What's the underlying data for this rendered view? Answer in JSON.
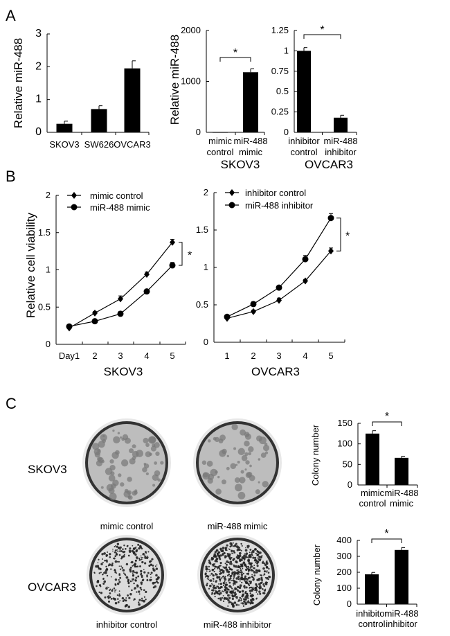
{
  "panel_labels": [
    "A",
    "B",
    "C"
  ],
  "colors": {
    "bar": "#000000",
    "line": "#000000",
    "dish_background": "#d9d9d9",
    "colony": "#222222"
  },
  "chart_data": [
    {
      "id": "A1",
      "type": "bar",
      "ylabel": "Relative miR-488",
      "ylim": [
        0,
        3
      ],
      "yticks": [
        "0",
        "1",
        "2",
        "3"
      ],
      "categories": [
        [
          "SKOV3"
        ],
        [
          "SW626"
        ],
        [
          "OVCAR3"
        ]
      ],
      "values": [
        0.26,
        0.71,
        1.95
      ],
      "errors": [
        0.08,
        0.1,
        0.23
      ]
    },
    {
      "id": "A2",
      "type": "bar",
      "ylabel": "Relative miR-488",
      "group_label": "SKOV3",
      "ylim": [
        0,
        2000
      ],
      "yticks": [
        "0",
        "1000",
        "2000"
      ],
      "categories": [
        [
          "mimic",
          "control"
        ],
        [
          "miR-488",
          "mimic"
        ]
      ],
      "values": [
        5,
        1180
      ],
      "errors": [
        0,
        70
      ],
      "significance": "*"
    },
    {
      "id": "A3",
      "type": "bar",
      "group_label": "OVCAR3",
      "ylim": [
        0,
        1.25
      ],
      "yticks": [
        "0",
        "0.25",
        "0.5",
        "0.75",
        "1",
        "1.25"
      ],
      "categories": [
        [
          "inhibitor",
          "control"
        ],
        [
          "miR-488",
          "inhibitor"
        ]
      ],
      "values": [
        1.0,
        0.18
      ],
      "errors": [
        0.04,
        0.03
      ],
      "significance": "*"
    },
    {
      "id": "B1",
      "type": "line",
      "ylabel": "Relative cell viability",
      "group_label": "SKOV3",
      "ylim": [
        0,
        2
      ],
      "yticks": [
        "0",
        "0.5",
        "1",
        "1.5",
        "2"
      ],
      "x": [
        "Day1",
        "2",
        "3",
        "4",
        "5"
      ],
      "series": [
        {
          "name": "mimic control",
          "marker": "diamond",
          "values": [
            0.22,
            0.42,
            0.61,
            0.94,
            1.37
          ],
          "errors": [
            0.02,
            0.02,
            0.04,
            0.03,
            0.04
          ]
        },
        {
          "name": "miR-488 mimic",
          "marker": "circle",
          "values": [
            0.24,
            0.31,
            0.41,
            0.71,
            1.06
          ],
          "errors": [
            0.02,
            0.03,
            0.03,
            0.03,
            0.04
          ]
        }
      ],
      "significance": "*"
    },
    {
      "id": "B2",
      "type": "line",
      "group_label": "OVCAR3",
      "ylim": [
        0,
        2
      ],
      "yticks": [
        "0",
        "0.5",
        "1",
        "1.5",
        "2"
      ],
      "x": [
        "1",
        "2",
        "3",
        "4",
        "5"
      ],
      "series": [
        {
          "name": "inhibitor control",
          "marker": "diamond",
          "values": [
            0.32,
            0.41,
            0.56,
            0.82,
            1.22
          ],
          "errors": [
            0.02,
            0.02,
            0.03,
            0.02,
            0.04
          ]
        },
        {
          "name": "miR-488 inhibitor",
          "marker": "circle",
          "values": [
            0.34,
            0.51,
            0.73,
            1.11,
            1.66
          ],
          "errors": [
            0.02,
            0.03,
            0.02,
            0.05,
            0.06
          ]
        }
      ],
      "significance": "*"
    },
    {
      "id": "C1",
      "type": "bar",
      "ylabel": "Colony number",
      "ylim": [
        0,
        150
      ],
      "yticks": [
        "0",
        "50",
        "100",
        "150"
      ],
      "categories": [
        [
          "mimic",
          "control"
        ],
        [
          "miR-488",
          "mimic"
        ]
      ],
      "values": [
        125,
        66
      ],
      "errors": [
        7,
        4
      ],
      "significance": "*"
    },
    {
      "id": "C2",
      "type": "bar",
      "ylabel": "Colony number",
      "ylim": [
        0,
        400
      ],
      "yticks": [
        "0",
        "100",
        "200",
        "300",
        "400"
      ],
      "categories": [
        [
          "inhibitor",
          "control"
        ],
        [
          "miR-488",
          "inhibitor"
        ]
      ],
      "values": [
        187,
        340
      ],
      "errors": [
        12,
        15
      ],
      "significance": "*"
    }
  ],
  "colony_panel": {
    "rows": [
      {
        "label": "SKOV3",
        "dishes": [
          "mimic control",
          "miR-488 mimic"
        ]
      },
      {
        "label": "OVCAR3",
        "dishes": [
          "inhibitor control",
          "miR-488 inhibitor"
        ]
      }
    ]
  }
}
